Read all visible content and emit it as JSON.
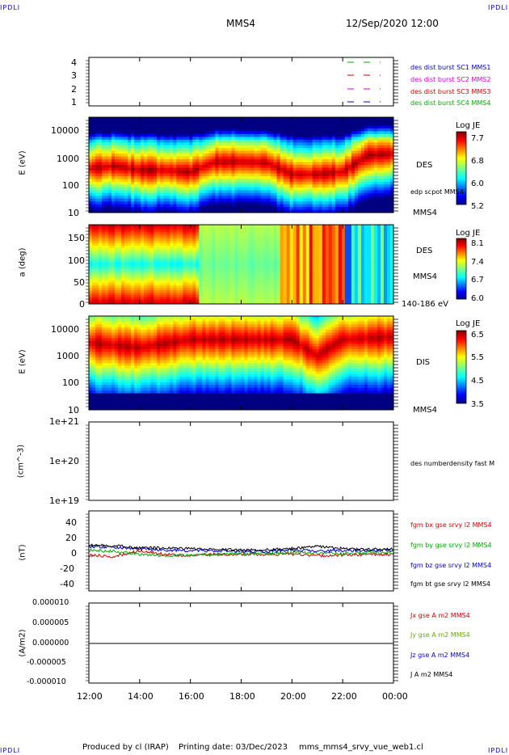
{
  "header": {
    "corner_tl": "IPDLI",
    "corner_tr": "IPDLI",
    "corner_bl": "IPDLI",
    "corner_br": "IPDLI",
    "spacecraft": "MMS4",
    "datetime": "12/Sep/2020 12:00"
  },
  "panels": {
    "flags": {
      "yticks": [
        "4",
        "3",
        "2",
        "1"
      ],
      "legend": [
        {
          "text": "des dist burst SC1 MMS1",
          "color": "#0000cc"
        },
        {
          "text": "des dist burst SC2 MMS2",
          "color": "#cc00cc"
        },
        {
          "text": "des dist burst SC3 MMS3",
          "color": "#cc0000"
        },
        {
          "text": "des dist burst SC4 MMS4",
          "color": "#00aa00"
        }
      ]
    },
    "des_energy": {
      "ylabel": "E (eV)",
      "yticks": [
        "10000",
        "1000",
        "100",
        "10"
      ],
      "label": "DES",
      "sub_label": "edp scpot MMS4",
      "sc_label": "MMS4",
      "cb_title": "Log JE",
      "cb_ticks": [
        "7.7",
        "6.8",
        "6.0",
        "5.2"
      ]
    },
    "des_pitch": {
      "ylabel": "a (deg)",
      "yticks": [
        "150",
        "100",
        "50",
        "0"
      ],
      "label": "DES",
      "sc_label": "MMS4",
      "range_label": "140-186 eV",
      "cb_title": "Log JE",
      "cb_ticks": [
        "8.1",
        "7.4",
        "6.7",
        "6.0"
      ]
    },
    "dis_energy": {
      "ylabel": "E (eV)",
      "yticks": [
        "10000",
        "1000",
        "100",
        "10"
      ],
      "label": "DIS",
      "sc_label": "MMS4",
      "cb_title": "Log JE",
      "cb_ticks": [
        "6.5",
        "5.5",
        "4.5",
        "3.5"
      ]
    },
    "density": {
      "ylabel": "(cm^-3)",
      "yticks": [
        "1e+21",
        "1e+20",
        "1e+19"
      ],
      "legend": "des numberdensity fast M"
    },
    "bfield": {
      "ylabel": "(nT)",
      "yticks": [
        "40",
        "20",
        "0",
        "-20",
        "-40"
      ],
      "legend": [
        {
          "text": "fgm bx gse srvy l2 MMS4",
          "color": "#cc0000"
        },
        {
          "text": "fgm by gse srvy l2 MMS4",
          "color": "#00aa00"
        },
        {
          "text": "fgm bz gse srvy l2 MMS4",
          "color": "#0000cc"
        },
        {
          "text": "fgm bt gse srvy l2 MMS4",
          "color": "#000000"
        }
      ]
    },
    "current": {
      "ylabel": "(A/m2)",
      "yticks": [
        "0.000010",
        "0.000005",
        "0.000000",
        "-0.000005",
        "-0.000010"
      ],
      "legend": [
        {
          "text": "Jx gse A m2 MMS4",
          "color": "#cc0000"
        },
        {
          "text": "Jy gse A m2 MMS4",
          "color": "#66aa00"
        },
        {
          "text": "Jz gse A m2 MMS4",
          "color": "#0000cc"
        },
        {
          "text": "J A m2 MMS4",
          "color": "#000000"
        }
      ]
    }
  },
  "xaxis": {
    "ticks": [
      "12:00",
      "14:00",
      "16:00",
      "18:00",
      "20:00",
      "22:00",
      "00:00"
    ]
  },
  "footer": {
    "produced": "Produced by cl (IRAP)",
    "printed": "Printing date: 03/Dec/2023",
    "file": "mms_mms4_srvy_vue_web1.cl"
  },
  "chart_data": [
    {
      "type": "heatmap",
      "title": "",
      "ylabel": "E (eV)",
      "yscale": "log",
      "ylim": [
        10,
        30000
      ],
      "xlim": [
        "12:00",
        "00:00"
      ],
      "colorbar": {
        "title": "Log JE",
        "ticks": [
          5.2,
          6.0,
          6.8,
          7.7
        ]
      },
      "peak_energy_track": {
        "x": [
          "12:00",
          "13:00",
          "14:00",
          "15:00",
          "16:00",
          "17:00",
          "18:00",
          "19:00",
          "20:00",
          "21:00",
          "22:00",
          "23:00",
          "00:00"
        ],
        "y": [
          400,
          500,
          350,
          350,
          300,
          700,
          700,
          650,
          250,
          250,
          300,
          1200,
          1400
        ]
      }
    },
    {
      "type": "heatmap",
      "title": "",
      "ylabel": "a (deg)",
      "ylim": [
        0,
        180
      ],
      "xlim": [
        "12:00",
        "00:00"
      ],
      "colorbar": {
        "title": "Log JE",
        "ticks": [
          6.0,
          6.7,
          7.4,
          8.1
        ]
      }
    },
    {
      "type": "heatmap",
      "title": "",
      "ylabel": "E (eV)",
      "yscale": "log",
      "ylim": [
        10,
        30000
      ],
      "xlim": [
        "12:00",
        "00:00"
      ],
      "colorbar": {
        "title": "Log JE",
        "ticks": [
          3.5,
          4.5,
          5.5,
          6.5
        ]
      },
      "peak_energy_track": {
        "x": [
          "12:00",
          "14:00",
          "16:00",
          "18:00",
          "20:00",
          "21:00",
          "22:00",
          "00:00"
        ],
        "y": [
          3000,
          2000,
          4000,
          4000,
          4000,
          1000,
          4000,
          5000
        ]
      }
    },
    {
      "type": "line",
      "ylabel": "(nT)",
      "ylim": [
        -50,
        50
      ],
      "x": [
        "12:00",
        "13:00",
        "14:00",
        "15:00",
        "16:00",
        "17:00",
        "18:00",
        "19:00",
        "20:00",
        "21:00",
        "22:00",
        "23:00",
        "00:00"
      ],
      "series": [
        {
          "name": "fgm bx gse srvy l2 MMS4",
          "color": "#cc0000",
          "values": [
            -3,
            -5,
            3,
            -2,
            -4,
            -2,
            -2,
            -2,
            -2,
            -4,
            -3,
            -2,
            -2
          ]
        },
        {
          "name": "fgm by gse srvy l2 MMS4",
          "color": "#00aa00",
          "values": [
            4,
            2,
            -2,
            -4,
            -3,
            -2,
            -1,
            -1,
            0,
            0,
            -1,
            1,
            0
          ]
        },
        {
          "name": "fgm bz gse srvy l2 MMS4",
          "color": "#0000cc",
          "values": [
            9,
            8,
            6,
            4,
            3,
            3,
            2,
            2,
            4,
            3,
            3,
            3,
            4
          ]
        },
        {
          "name": "fgm bt gse srvy l2 MMS4",
          "color": "#000000",
          "values": [
            11,
            10,
            7,
            7,
            6,
            5,
            4,
            4,
            6,
            9,
            6,
            5,
            5
          ]
        }
      ]
    },
    {
      "type": "line",
      "ylabel": "(A/m2)",
      "ylim": [
        -1e-05,
        1e-05
      ],
      "x": [
        "12:00",
        "18:00",
        "00:00"
      ],
      "series": [
        {
          "name": "J A m2 MMS4",
          "color": "#000000",
          "values": [
            0,
            0,
            0
          ]
        }
      ]
    }
  ]
}
